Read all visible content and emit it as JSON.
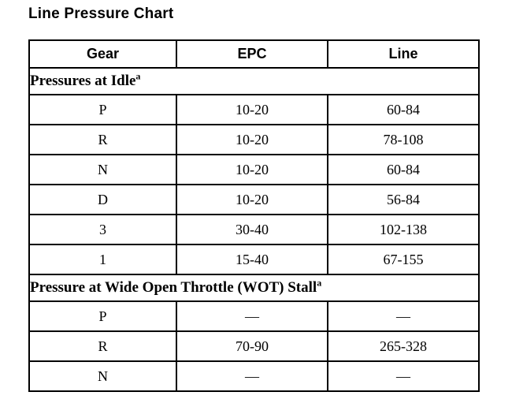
{
  "page": {
    "title": "Line Pressure Chart"
  },
  "table": {
    "columns": [
      "Gear",
      "EPC",
      "Line"
    ],
    "sections": [
      {
        "header": "Pressures at Idle",
        "superscript": "a",
        "rows": [
          [
            "P",
            "10-20",
            "60-84"
          ],
          [
            "R",
            "10-20",
            "78-108"
          ],
          [
            "N",
            "10-20",
            "60-84"
          ],
          [
            "D",
            "10-20",
            "56-84"
          ],
          [
            "3",
            "30-40",
            "102-138"
          ],
          [
            "1",
            "15-40",
            "67-155"
          ]
        ]
      },
      {
        "header": "Pressure at Wide Open Throttle (WOT) Stall",
        "superscript": "a",
        "rows": [
          [
            "P",
            "—",
            "—"
          ],
          [
            "R",
            "70-90",
            "265-328"
          ],
          [
            "N",
            "—",
            "—"
          ]
        ]
      }
    ]
  }
}
